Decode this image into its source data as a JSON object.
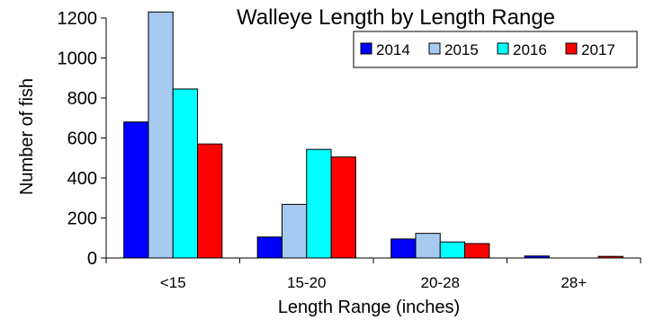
{
  "chart_data": {
    "type": "bar",
    "title": "Walleye Length by Length Range",
    "xlabel": "Length Range (inches)",
    "ylabel": "Number of fish",
    "categories": [
      "<15",
      "15-20",
      "20-28",
      "28+"
    ],
    "ylim": [
      0,
      1200
    ],
    "yticks": [
      0,
      200,
      400,
      600,
      800,
      1000,
      1200
    ],
    "grid": false,
    "legend": "top-right",
    "series": [
      {
        "name": "2014",
        "color": "#0000ff",
        "values": [
          680,
          105,
          95,
          10
        ]
      },
      {
        "name": "2015",
        "color": "#a6caf0",
        "values": [
          1230,
          268,
          123,
          0
        ]
      },
      {
        "name": "2016",
        "color": "#00ffff",
        "values": [
          845,
          543,
          80,
          0
        ]
      },
      {
        "name": "2017",
        "color": "#ff0000",
        "values": [
          570,
          505,
          72,
          8
        ]
      }
    ]
  }
}
